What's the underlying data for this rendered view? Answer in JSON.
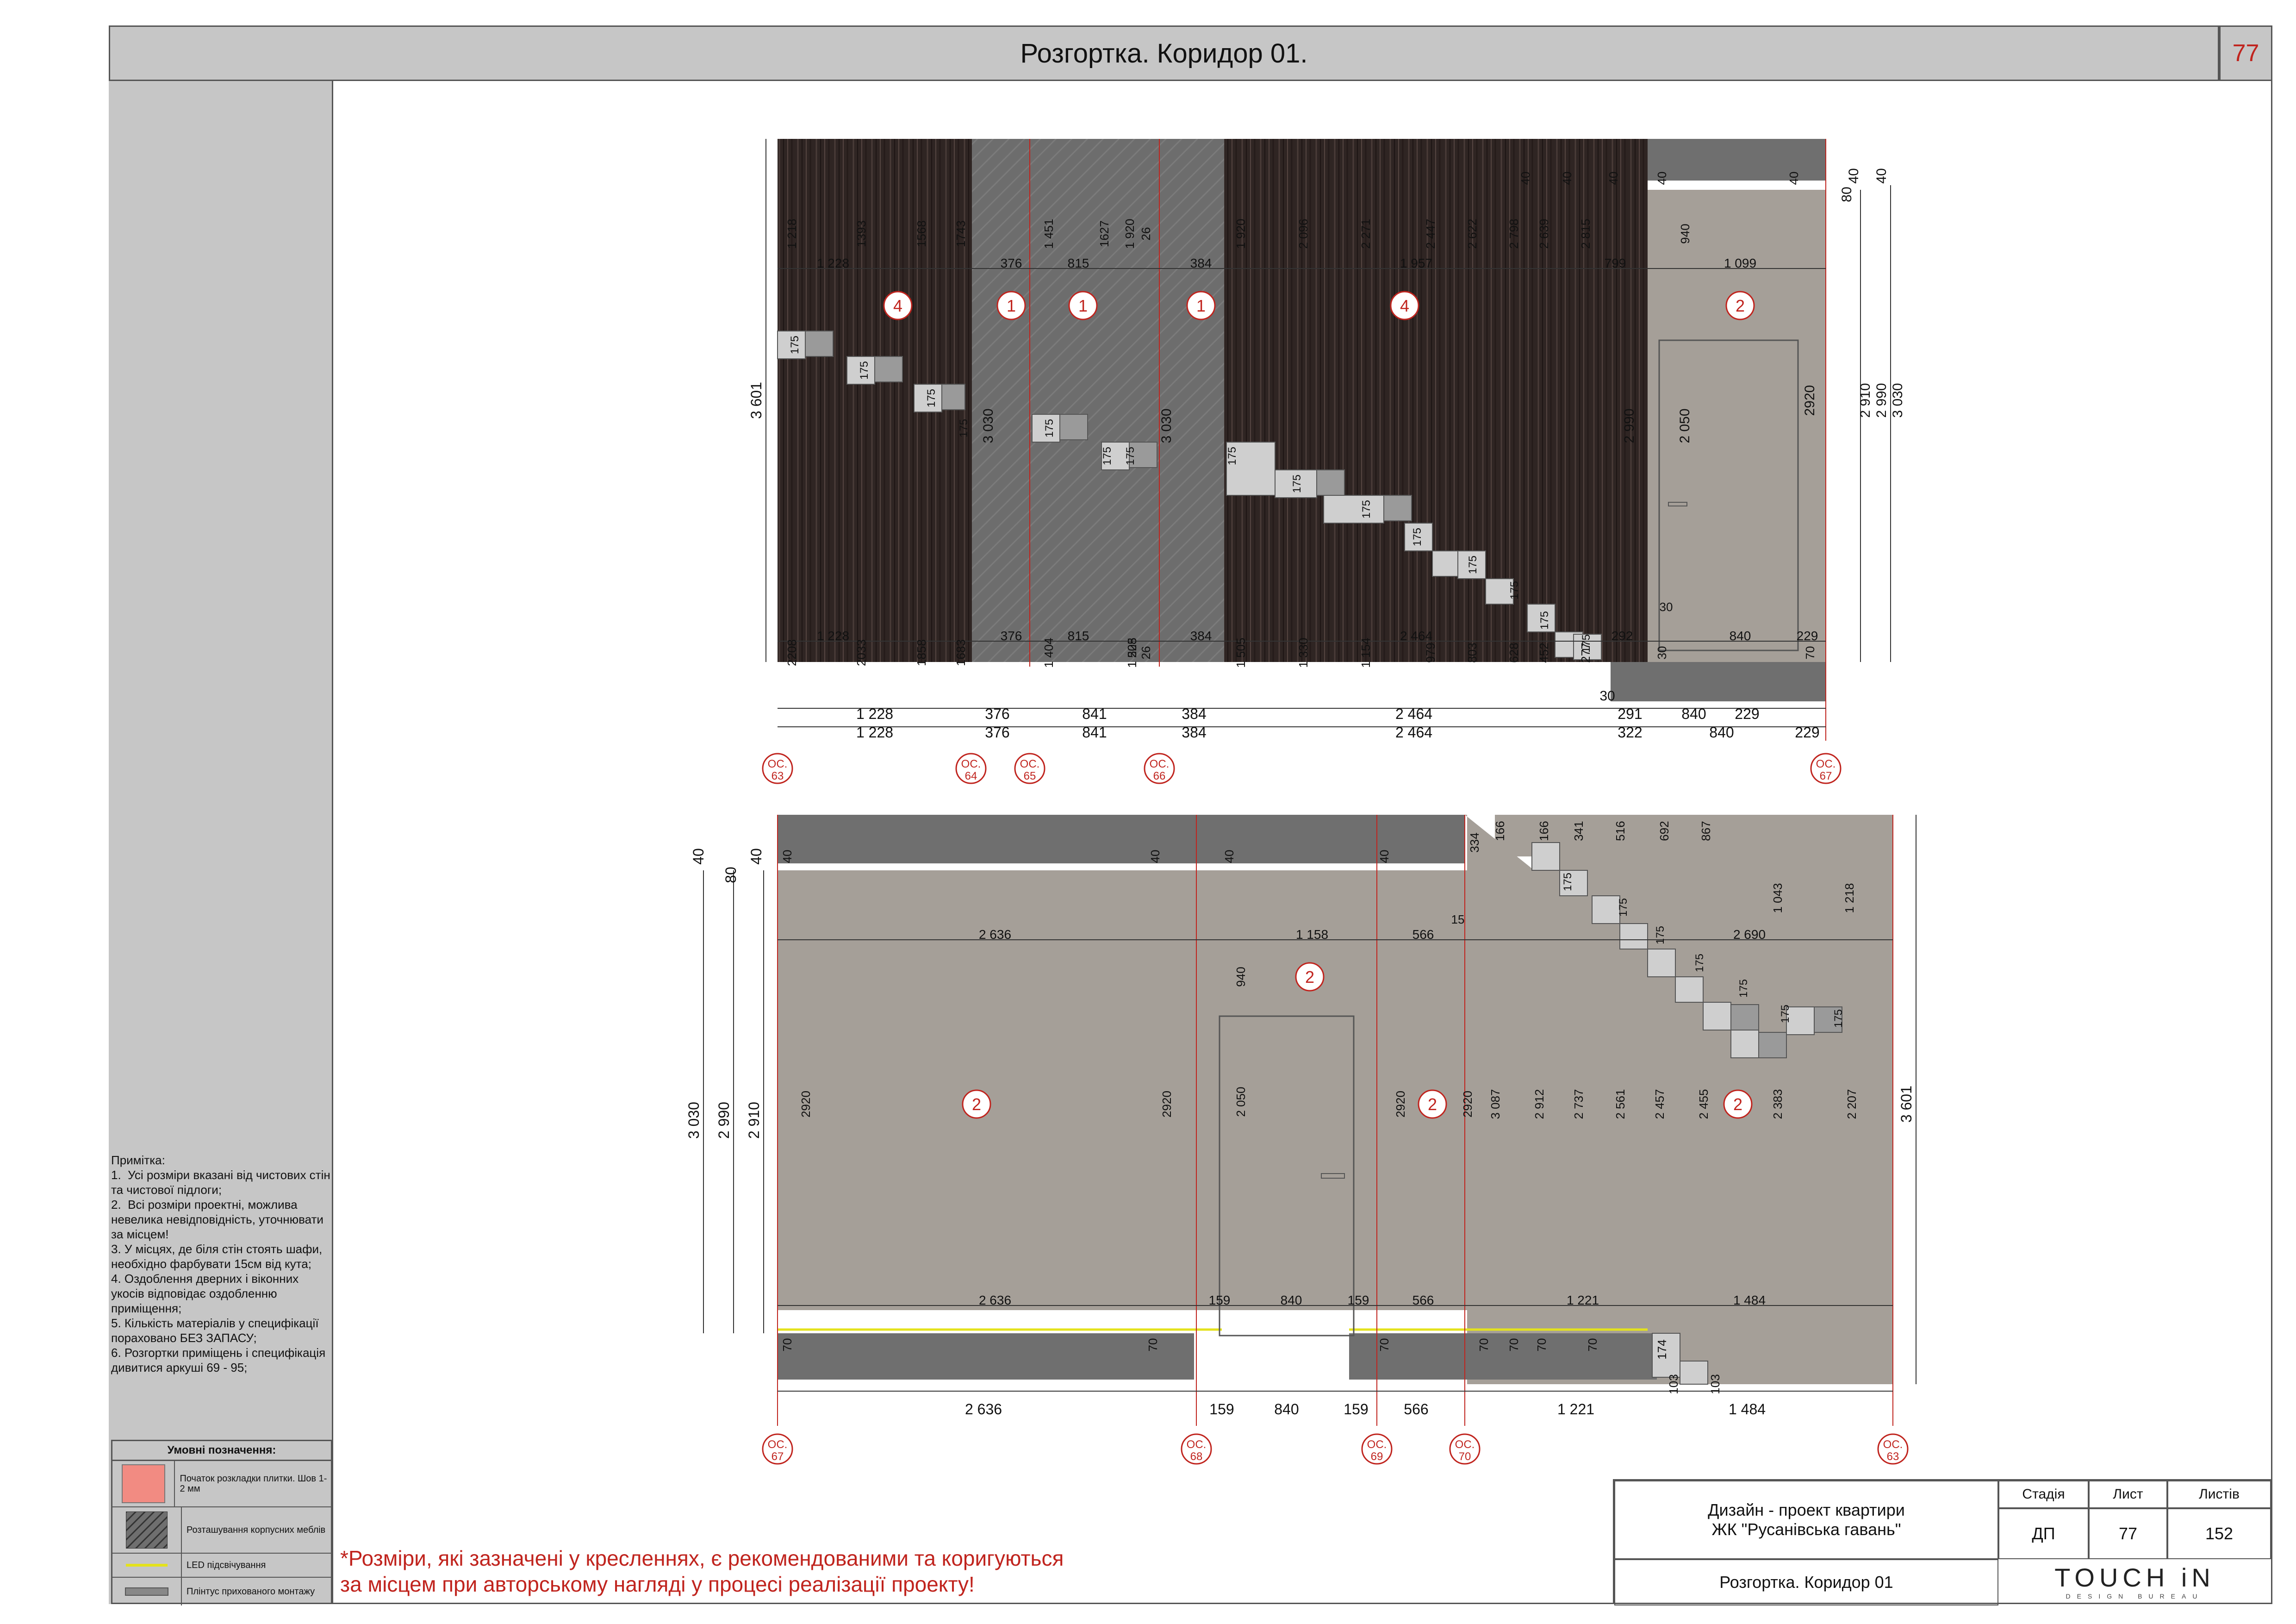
{
  "title": "Розгортка. Коридор 01.",
  "sheet_number": "77",
  "notes": {
    "heading": "Примітка:",
    "items": [
      "1.  Усі розміри вказані від чистових стін та чистової підлоги;",
      "2.  Всі розміри проектні, можлива невелика невідповідність, уточнювати за місцем!",
      "3. У місцях, де біля стін стоять шафи, необхідно фарбувати 15см від кута;",
      "4. Оздоблення дверних і віконних укосів відповідає оздобленню приміщення;",
      "5. Кількість матеріалів у специфікації пораховано БЕЗ ЗАПАСУ;",
      "6. Розгортки приміщень і специфікація дивитися аркуші 69 - 95;"
    ]
  },
  "legend": {
    "title": "Умовні позначення:",
    "items": [
      {
        "label": "Початок розкладки плитки. Шов 1-2 мм",
        "swatch": "#f28b82"
      },
      {
        "label": "Розташування корпусних меблів",
        "swatch": "hatch"
      },
      {
        "label": "LED підсвічування",
        "swatch": "#e4e21c"
      },
      {
        "label": "Плінтус прихованого монтажу",
        "swatch": "#888888"
      }
    ]
  },
  "disclaimer": {
    "line1": "*Розміри, які зазначені у кресленнях, є рекомендованими та коригуються",
    "line2": "за місцем при авторському нагляді у процесі реалізації проекту!"
  },
  "titleblock": {
    "project_line1": "Дизайн - проект квартири",
    "project_line2": "ЖК \"Русанівська гавань\"",
    "sheet_title": "Розгортка. Коридор 01",
    "stage_label": "Стадія",
    "sheet_label": "Лист",
    "sheets_label": "Листів",
    "stage": "ДП",
    "sheet": "77",
    "sheets": "152",
    "logo_main": "TOUCH iN",
    "logo_sub": "DESIGN BUREAU"
  },
  "colors": {
    "accent_red": "#c0241e",
    "dark_wood": "#2f2523",
    "wall_grey": "#a59f98",
    "panel_grey": "#6f6f6f",
    "frame_grey": "#c6c6c6"
  },
  "drawing_top": {
    "zone_markers": [
      "4",
      "1",
      "1",
      "1",
      "4",
      "2"
    ],
    "axes": [
      "ОС. 63",
      "ОС. 64",
      "ОС. 65",
      "ОС. 66",
      "ОС. 67"
    ],
    "bottom_dims_row1": [
      "1 228",
      "376",
      "841",
      "384",
      "2 464",
      "291",
      "840",
      "229"
    ],
    "bottom_dims_row2": [
      "1 228",
      "376",
      "841",
      "384",
      "2 464",
      "322",
      "840",
      "229"
    ],
    "upper_dims": [
      "1 228",
      "376",
      "815",
      "384",
      "1 957",
      "799",
      "1 099"
    ],
    "lower_dims": [
      "1 228",
      "376",
      "815",
      "384",
      "2 464",
      "292",
      "840",
      "229"
    ],
    "left_height": "3 601",
    "right_heights": [
      "2 990",
      "3 030",
      "2 910",
      "2920",
      "80",
      "40",
      "40"
    ],
    "vertical_top": [
      "1 218",
      "1393",
      "1568",
      "1743",
      "1 451",
      "1627",
      "1 920",
      "26",
      "1 920",
      "2 096",
      "2 271",
      "2 447",
      "2 622",
      "2 798",
      "2 639",
      "2 815",
      "40",
      "40",
      "40",
      "40",
      "40",
      "940"
    ],
    "vertical_bottom": [
      "2208",
      "2033",
      "1858",
      "1683",
      "1 404",
      "1 228",
      "1 505",
      "26",
      "1 505",
      "1 330",
      "1 154",
      "979",
      "803",
      "628",
      "452",
      "277",
      "30",
      "70"
    ],
    "inner_heights": [
      "3 030",
      "3 030",
      "2 990",
      "2 050"
    ],
    "tile_steps": "175",
    "gap_small": "30"
  },
  "drawing_bottom": {
    "zone_markers": [
      "2",
      "2",
      "2",
      "2"
    ],
    "axes": [
      "ОС. 67",
      "ОС. 68",
      "ОС. 69",
      "ОС. 70",
      "ОС. 63"
    ],
    "bottom_dims": [
      "2 636",
      "159",
      "840",
      "159",
      "566",
      "1 221",
      "1 484"
    ],
    "upper_dims": [
      "2 636",
      "1 158",
      "566",
      "2 690"
    ],
    "lower_dims": [
      "2 636",
      "159",
      "840",
      "159",
      "566",
      "1 221",
      "1 484"
    ],
    "left_heights": [
      "3 030",
      "2 990",
      "2 910",
      "40",
      "80",
      "40"
    ],
    "right_height": "3 601",
    "vertical_top": [
      "40",
      "40",
      "40",
      "40",
      "334",
      "166",
      "166",
      "341",
      "516",
      "692",
      "867",
      "1 043",
      "1 218",
      "15"
    ],
    "vertical_mid": [
      "2920",
      "2920",
      "2 050",
      "2920",
      "2920",
      "3 087",
      "2 912",
      "2 737",
      "2 561",
      "2 457",
      "2 455",
      "2 383",
      "2 207",
      "940"
    ],
    "vertical_bottom": [
      "70",
      "70",
      "70",
      "70",
      "70",
      "70",
      "70",
      "174",
      "103",
      "103"
    ],
    "tile_steps": "175"
  }
}
